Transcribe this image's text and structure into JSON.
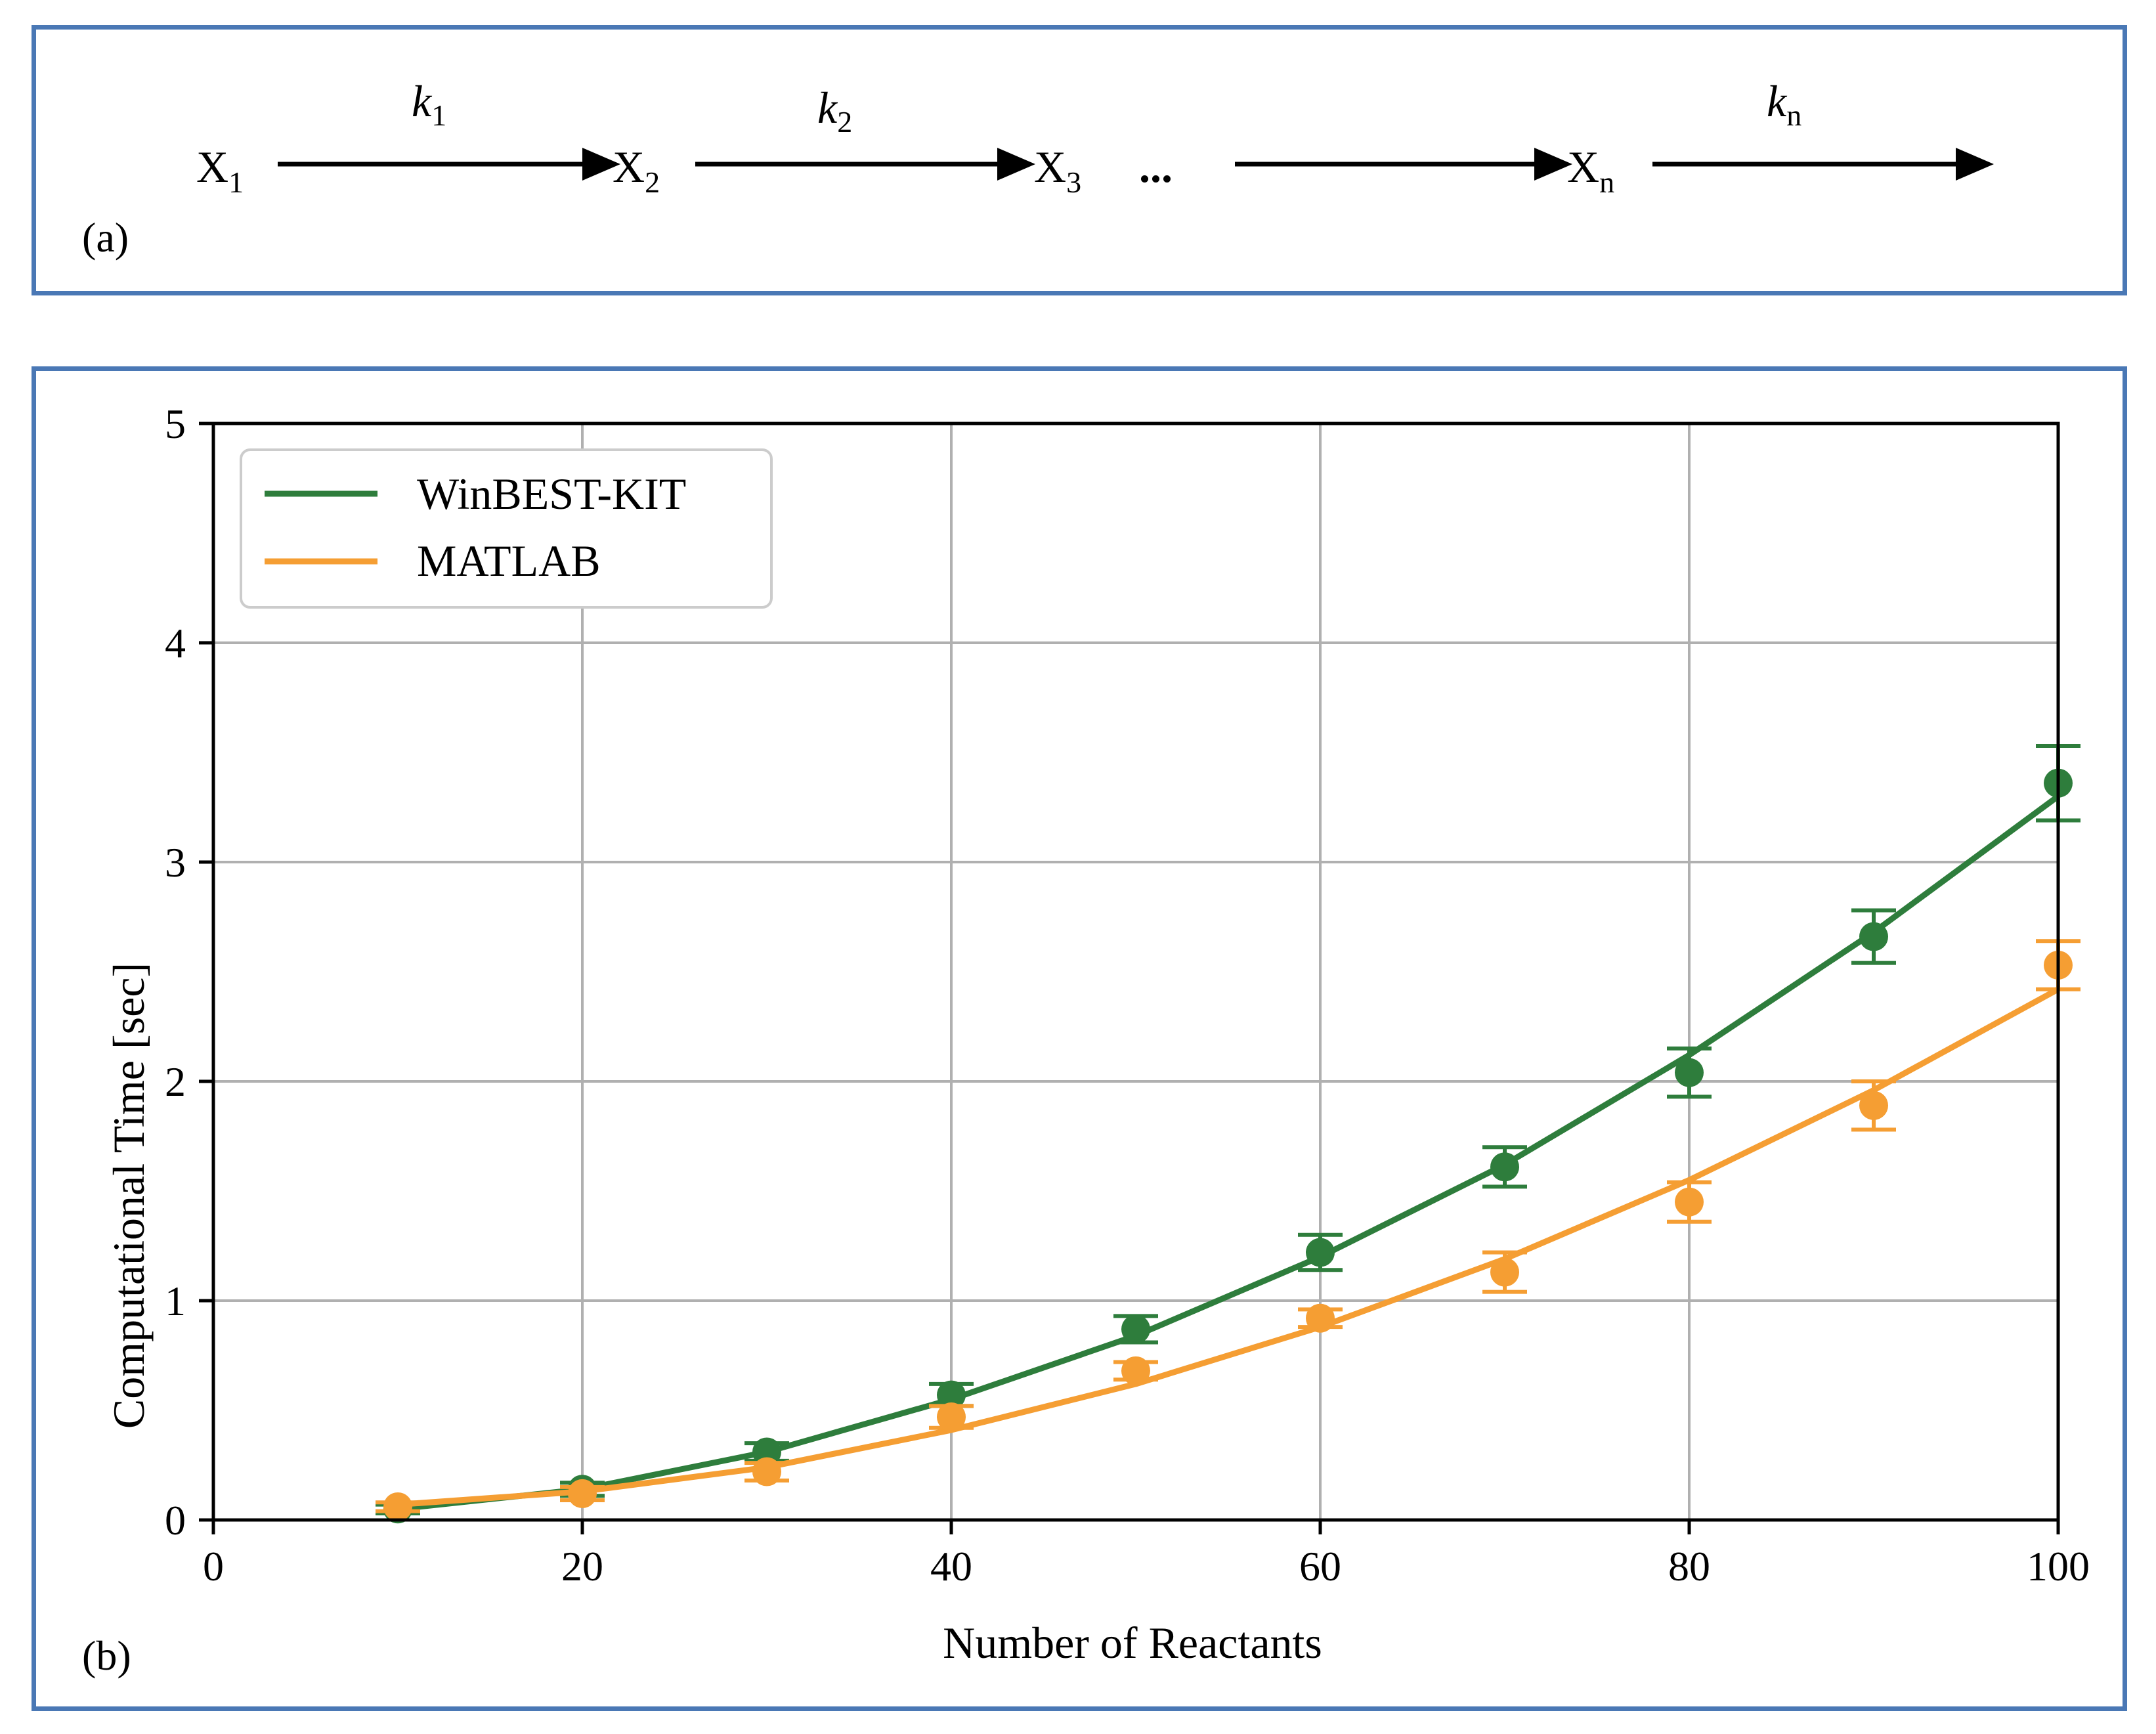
{
  "panel_a": {
    "label": "(a)",
    "species": [
      {
        "base": "X",
        "sub": "1"
      },
      {
        "base": "X",
        "sub": "2"
      },
      {
        "base": "X",
        "sub": "3"
      },
      {
        "base": "X",
        "sub": "n"
      }
    ],
    "ellipsis": "...",
    "rates": [
      {
        "base": "k",
        "sub": "1"
      },
      {
        "base": "k",
        "sub": "2"
      },
      {
        "base": "k",
        "sub": "n"
      }
    ]
  },
  "panel_b": {
    "label": "(b)"
  },
  "colors": {
    "winbest": "#2e7d3c",
    "matlab": "#f59e33",
    "border": "#4a78b5",
    "grid": "#b0b0b0"
  },
  "chart_data": {
    "type": "line",
    "title": "",
    "xlabel": "Number of Reactants",
    "ylabel": "Computational Time [sec]",
    "xlim": [
      0,
      100
    ],
    "ylim": [
      0,
      5
    ],
    "xticks": [
      0,
      20,
      40,
      60,
      80,
      100
    ],
    "yticks": [
      0,
      1,
      2,
      3,
      4,
      5
    ],
    "grid": true,
    "legend_position": "top-left",
    "x": [
      10,
      20,
      30,
      40,
      50,
      60,
      70,
      80,
      90,
      100
    ],
    "series": [
      {
        "name": "WinBEST-KIT",
        "color": "#2e7d3c",
        "fit": [
          0.05,
          0.14,
          0.31,
          0.55,
          0.84,
          1.2,
          1.62,
          2.12,
          2.68,
          3.3
        ],
        "points": [
          0.05,
          0.14,
          0.31,
          0.57,
          0.87,
          1.22,
          1.61,
          2.04,
          2.66,
          3.36
        ],
        "errors": [
          0.02,
          0.03,
          0.04,
          0.05,
          0.06,
          0.08,
          0.09,
          0.11,
          0.12,
          0.17
        ]
      },
      {
        "name": "MATLAB",
        "color": "#f59e33",
        "fit": [
          0.07,
          0.13,
          0.24,
          0.41,
          0.62,
          0.88,
          1.19,
          1.55,
          1.96,
          2.42
        ],
        "points": [
          0.06,
          0.12,
          0.22,
          0.47,
          0.68,
          0.92,
          1.13,
          1.45,
          1.89,
          2.53
        ],
        "errors": [
          0.02,
          0.03,
          0.04,
          0.05,
          0.04,
          0.04,
          0.09,
          0.09,
          0.11,
          0.11
        ]
      }
    ]
  }
}
